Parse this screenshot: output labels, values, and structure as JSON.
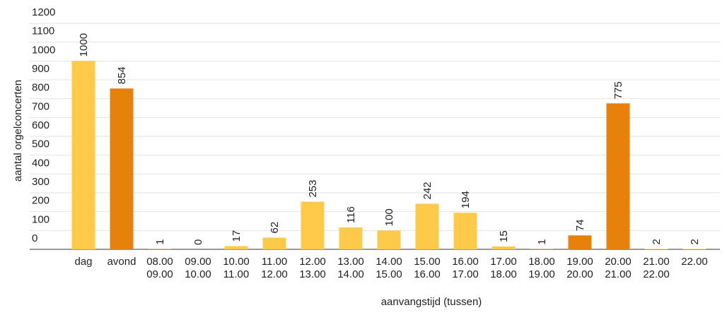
{
  "chart_data": {
    "type": "bar",
    "y_label": "aantal orgelconcerten",
    "x_label": "aanvangstijd (tussen)",
    "categories": [
      [
        "dag"
      ],
      [
        "avond"
      ],
      [
        "08.00",
        "09.00"
      ],
      [
        "09.00",
        "10.00"
      ],
      [
        "10.00",
        "11.00"
      ],
      [
        "11.00",
        "12.00"
      ],
      [
        "12.00",
        "13.00"
      ],
      [
        "13.00",
        "14.00"
      ],
      [
        "14.00",
        "15.00"
      ],
      [
        "15.00",
        "16.00"
      ],
      [
        "16.00",
        "17.00"
      ],
      [
        "17.00",
        "18.00"
      ],
      [
        "18.00",
        "19.00"
      ],
      [
        "19.00",
        "20.00"
      ],
      [
        "20.00",
        "21.00"
      ],
      [
        "21.00",
        "22.00"
      ],
      [
        "22.00"
      ]
    ],
    "values": [
      1000,
      854,
      1,
      0,
      17,
      62,
      253,
      116,
      100,
      242,
      194,
      15,
      1,
      74,
      775,
      2,
      2
    ],
    "colors": [
      "#ffc94a",
      "#e8800c",
      "#ffc94a",
      "#ffc94a",
      "#ffc94a",
      "#ffc94a",
      "#ffc94a",
      "#ffc94a",
      "#ffc94a",
      "#ffc94a",
      "#ffc94a",
      "#ffc94a",
      "#ffc94a",
      "#e8800c",
      "#e8800c",
      "#ffc94a",
      "#ffc94a"
    ],
    "ylim": [
      0,
      1200
    ],
    "yticks": [
      0,
      100,
      200,
      300,
      400,
      500,
      600,
      700,
      800,
      900,
      1000,
      1100,
      1200
    ],
    "grid": true
  }
}
